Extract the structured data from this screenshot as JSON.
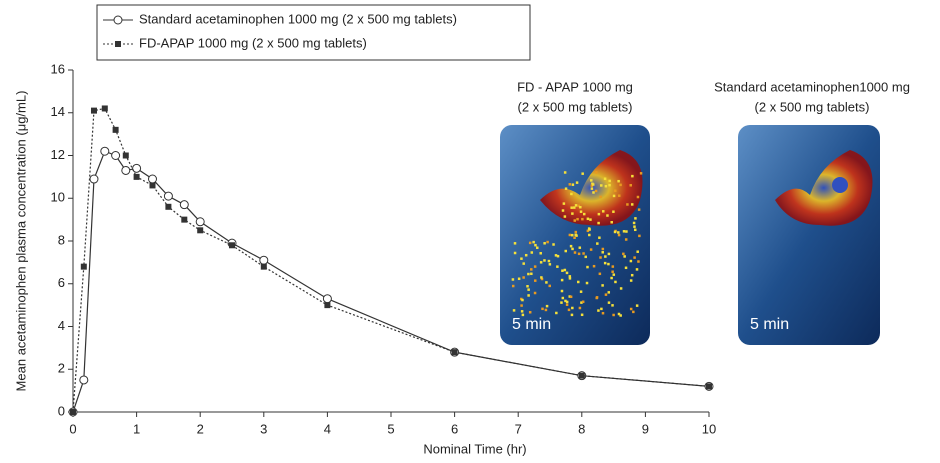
{
  "chart_data": {
    "type": "line",
    "x_label": "Nominal Time (hr)",
    "y_label": "Mean acetaminophen plasma concentration (μg/mL)",
    "xlim": [
      0,
      10
    ],
    "xticks": [
      0,
      1,
      2,
      3,
      4,
      5,
      6,
      7,
      8,
      9,
      10
    ],
    "ylim": [
      0,
      16
    ],
    "yticks": [
      0,
      2,
      4,
      6,
      8,
      10,
      12,
      14,
      16
    ],
    "series": [
      {
        "name": "Standard acetaminophen 1000 mg (2 x 500 mg tablets)",
        "color": "#333333",
        "marker": "circle",
        "line_style": "solid",
        "x": [
          0,
          0.17,
          0.33,
          0.5,
          0.67,
          0.83,
          1,
          1.25,
          1.5,
          1.75,
          2,
          2.5,
          3,
          4,
          6,
          8,
          10
        ],
        "values": [
          0,
          1.5,
          10.9,
          12.2,
          12.0,
          11.3,
          11.4,
          10.9,
          10.1,
          9.7,
          8.9,
          7.9,
          7.1,
          5.3,
          2.8,
          1.7,
          1.2
        ]
      },
      {
        "name": "FD-APAP 1000 mg (2 x 500 mg tablets)",
        "color": "#333333",
        "marker": "square",
        "line_style": "dotted",
        "x": [
          0,
          0.17,
          0.33,
          0.5,
          0.67,
          0.83,
          1,
          1.25,
          1.5,
          1.75,
          2,
          2.5,
          3,
          4,
          6,
          8,
          10
        ],
        "values": [
          0,
          6.8,
          14.1,
          14.2,
          13.2,
          12.0,
          11.0,
          10.6,
          9.6,
          9.0,
          8.5,
          7.8,
          6.8,
          5.0,
          2.8,
          1.7,
          1.2
        ]
      }
    ],
    "panels": [
      {
        "title": [
          "FD - APAP 1000 mg",
          "(2 x 500 mg tablets)"
        ],
        "label": "5 min"
      },
      {
        "title": [
          "Standard acetaminophen1000 mg",
          "(2 x 500 mg tablets)"
        ],
        "label": "5 min"
      }
    ]
  }
}
